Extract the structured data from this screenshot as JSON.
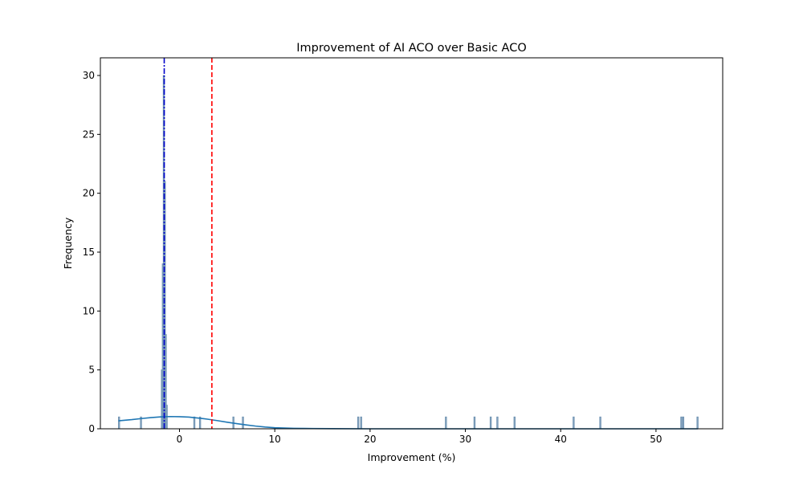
{
  "chart_data": {
    "type": "histogram",
    "title": "Improvement of AI ACO over Basic ACO",
    "xlabel": "Improvement (%)",
    "ylabel": "Frequency",
    "xlim": [
      -8.3,
      57.0
    ],
    "ylim": [
      0,
      31.5
    ],
    "xticks": [
      0,
      10,
      20,
      30,
      40,
      50
    ],
    "yticks": [
      0,
      5,
      10,
      15,
      20,
      25,
      30
    ],
    "grid": false,
    "legend": "none",
    "colors": {
      "bars_fill": "#9fb6c9",
      "bars_edge": "#6f93b3",
      "kde": "#1f77b4",
      "mean_line": "#ff0000",
      "median_line": "#0000cc"
    },
    "bars": [
      {
        "x0": -6.4,
        "x1": -6.3,
        "count": 1
      },
      {
        "x0": -4.1,
        "x1": -4.0,
        "count": 1
      },
      {
        "x0": -1.9,
        "x1": -1.8,
        "count": 5
      },
      {
        "x0": -1.8,
        "x1": -1.7,
        "count": 14
      },
      {
        "x0": -1.7,
        "x1": -1.6,
        "count": 30
      },
      {
        "x0": -1.6,
        "x1": -1.5,
        "count": 21
      },
      {
        "x0": -1.5,
        "x1": -1.4,
        "count": 8
      },
      {
        "x0": -1.4,
        "x1": -1.3,
        "count": 2
      },
      {
        "x0": 1.5,
        "x1": 1.6,
        "count": 1
      },
      {
        "x0": 2.1,
        "x1": 2.2,
        "count": 1
      },
      {
        "x0": 5.6,
        "x1": 5.7,
        "count": 1
      },
      {
        "x0": 6.6,
        "x1": 6.7,
        "count": 1
      },
      {
        "x0": 18.7,
        "x1": 18.8,
        "count": 1
      },
      {
        "x0": 19.0,
        "x1": 19.1,
        "count": 1
      },
      {
        "x0": 27.9,
        "x1": 28.0,
        "count": 1
      },
      {
        "x0": 30.9,
        "x1": 31.0,
        "count": 1
      },
      {
        "x0": 32.6,
        "x1": 32.7,
        "count": 1
      },
      {
        "x0": 33.3,
        "x1": 33.4,
        "count": 1
      },
      {
        "x0": 35.1,
        "x1": 35.2,
        "count": 1
      },
      {
        "x0": 41.3,
        "x1": 41.4,
        "count": 1
      },
      {
        "x0": 44.1,
        "x1": 44.2,
        "count": 1
      },
      {
        "x0": 52.6,
        "x1": 52.7,
        "count": 1
      },
      {
        "x0": 52.8,
        "x1": 52.9,
        "count": 1
      },
      {
        "x0": 54.3,
        "x1": 54.4,
        "count": 1
      }
    ],
    "kde": {
      "x": [
        -6.4,
        -5,
        -4,
        -3,
        -2,
        -1,
        0,
        1,
        2,
        3,
        4,
        5,
        6,
        7,
        8,
        9,
        10,
        12,
        14,
        16,
        20,
        30,
        40,
        54.4
      ],
      "y": [
        0.68,
        0.78,
        0.87,
        0.95,
        1.01,
        1.04,
        1.03,
        0.99,
        0.91,
        0.81,
        0.69,
        0.56,
        0.44,
        0.33,
        0.23,
        0.15,
        0.09,
        0.04,
        0.02,
        0.01,
        0.0,
        0.0,
        0.0,
        0.0
      ]
    },
    "mean_line": {
      "x": 3.4,
      "style": "dashed"
    },
    "median_line": {
      "x": -1.6,
      "style": "dashdot"
    }
  }
}
